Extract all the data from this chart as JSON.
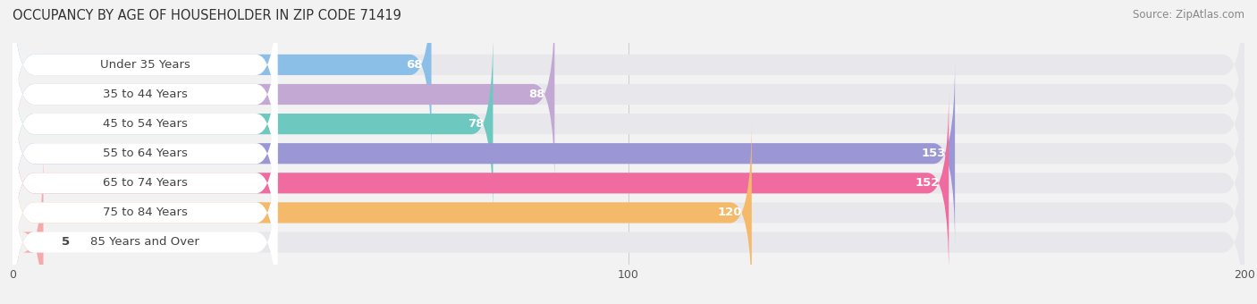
{
  "title": "OCCUPANCY BY AGE OF HOUSEHOLDER IN ZIP CODE 71419",
  "source": "Source: ZipAtlas.com",
  "categories": [
    "Under 35 Years",
    "35 to 44 Years",
    "45 to 54 Years",
    "55 to 64 Years",
    "65 to 74 Years",
    "75 to 84 Years",
    "85 Years and Over"
  ],
  "values": [
    68,
    88,
    78,
    153,
    152,
    120,
    5
  ],
  "bar_colors": [
    "#8BBFE8",
    "#C4A8D4",
    "#6DC8C0",
    "#9B97D4",
    "#F06CA0",
    "#F5B96A",
    "#F4AAAA"
  ],
  "xlim": [
    0,
    200
  ],
  "bg_color": "#f2f2f2",
  "bar_bg_color": "#e8e8ec",
  "white_label_bg": "#ffffff",
  "label_color_dark": "#444444",
  "label_color_white": "#ffffff",
  "title_fontsize": 10.5,
  "source_fontsize": 8.5,
  "tick_fontsize": 9,
  "category_fontsize": 9.5
}
